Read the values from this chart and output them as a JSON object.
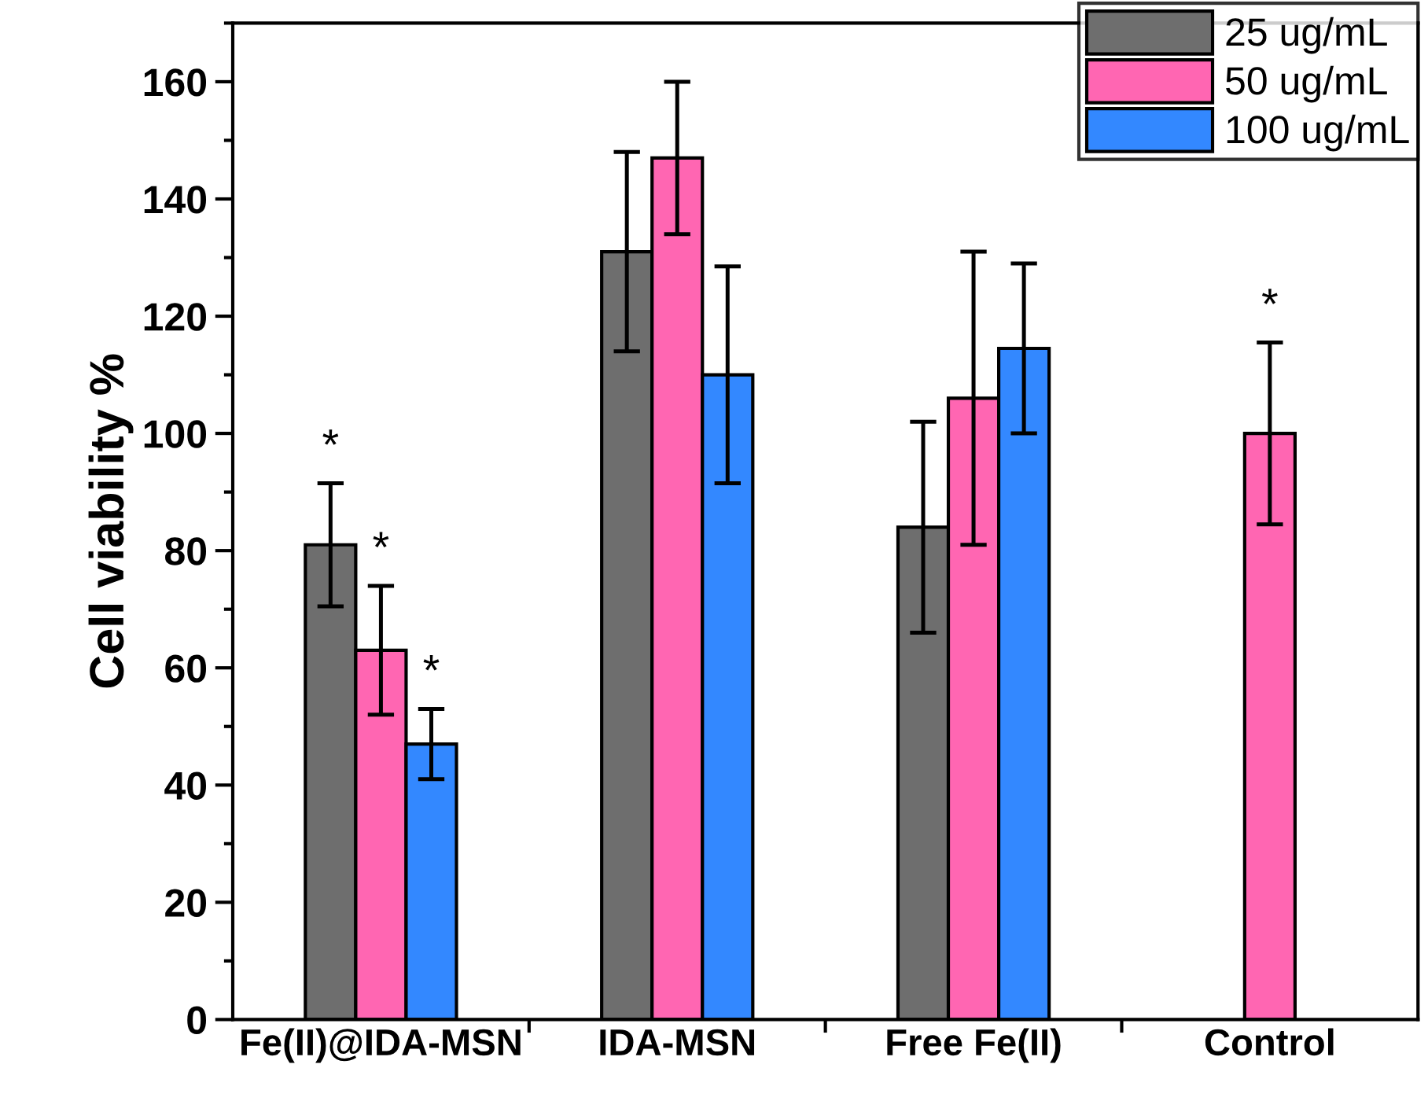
{
  "chart_data": {
    "type": "bar",
    "ylabel": "Cell viability %",
    "categories": [
      "Fe(II)@IDA-MSN",
      "IDA-MSN",
      "Free Fe(II)",
      "Control"
    ],
    "series": [
      {
        "name": "25 ug/mL",
        "color": "#6e6e6e",
        "values": [
          81,
          131,
          84,
          null
        ],
        "errors": [
          10.5,
          17,
          18,
          null
        ]
      },
      {
        "name": "50 ug/mL",
        "color": "#ff66b2",
        "values": [
          63,
          147,
          106,
          100
        ],
        "errors": [
          11,
          13,
          25,
          15.5
        ]
      },
      {
        "name": "100 ug/mL",
        "color": "#3388ff",
        "values": [
          47,
          110,
          114.5,
          null
        ],
        "errors": [
          6,
          18.5,
          14.5,
          null
        ]
      }
    ],
    "ylim": [
      0,
      170
    ],
    "yticks": [
      0,
      20,
      40,
      60,
      80,
      100,
      120,
      140,
      160
    ],
    "annotations": [
      "*",
      {
        "text": "*",
        "x": "Fe(II)@IDA-MSN",
        "y": 74
      },
      {
        "text": "*",
        "x": "Fe(II)@IDA-MSN",
        "y": 53
      },
      {
        "text": "*",
        "x": "Control",
        "y": 115.5
      }
    ],
    "legend": "top right",
    "grid": false
  }
}
